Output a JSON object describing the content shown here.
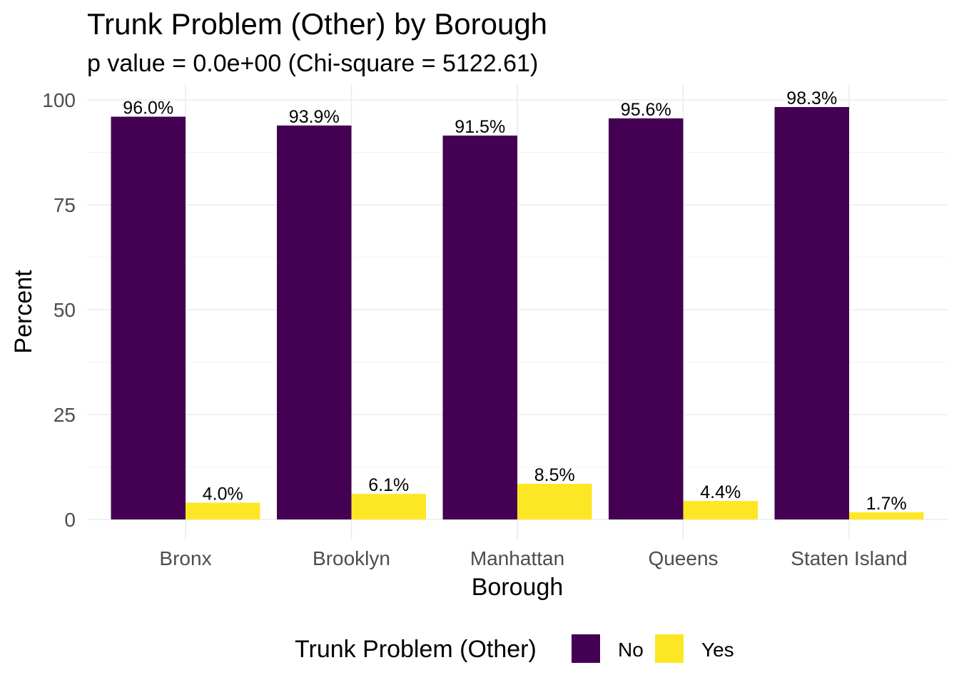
{
  "chart_data": {
    "type": "bar",
    "title": "Trunk Problem (Other) by Borough",
    "subtitle": "p value = 0.0e+00 (Chi-square = 5122.61)",
    "xlabel": "Borough",
    "ylabel": "Percent",
    "categories": [
      "Bronx",
      "Brooklyn",
      "Manhattan",
      "Queens",
      "Staten Island"
    ],
    "series": [
      {
        "name": "No",
        "color": "#440154",
        "values": [
          96.0,
          93.9,
          91.5,
          95.6,
          98.3
        ],
        "labels": [
          "96.0%",
          "93.9%",
          "91.5%",
          "95.6%",
          "98.3%"
        ]
      },
      {
        "name": "Yes",
        "color": "#FDE725",
        "values": [
          4.0,
          6.1,
          8.5,
          4.4,
          1.7
        ],
        "labels": [
          "4.0%",
          "6.1%",
          "8.5%",
          "4.4%",
          "1.7%"
        ]
      }
    ],
    "ylim": [
      0,
      100
    ],
    "yticks": [
      0,
      25,
      50,
      75,
      100
    ],
    "grid": true,
    "legend": {
      "title": "Trunk Problem (Other)",
      "position": "bottom"
    }
  }
}
